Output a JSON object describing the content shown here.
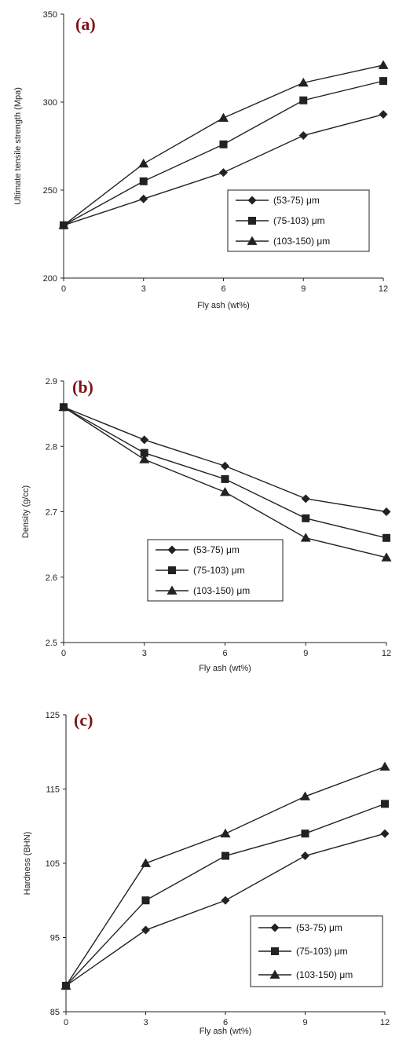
{
  "colors": {
    "line": "#222222",
    "tag": "#7a1416"
  },
  "chart_data": [
    {
      "type": "line",
      "tag": "(a)",
      "x": [
        0,
        3,
        6,
        9,
        12
      ],
      "xticks": [
        "0",
        "3",
        "6",
        "9",
        "12"
      ],
      "yticks": [
        "200",
        "250",
        "300",
        "350"
      ],
      "xlim": [
        0,
        12
      ],
      "ylim": [
        200,
        350
      ],
      "xlabel": "Fly ash (wt%)",
      "ylabel": "Ultimate tensile strength (Mpa)",
      "grid": false,
      "legend_placement": "center-right",
      "series": [
        {
          "name": "(53-75) μm",
          "marker": "diamond",
          "values": [
            230,
            245,
            260,
            281,
            293
          ]
        },
        {
          "name": "(75-103) μm",
          "marker": "square",
          "values": [
            230,
            255,
            276,
            301,
            312
          ]
        },
        {
          "name": "(103-150) μm",
          "marker": "triangle",
          "values": [
            230,
            265,
            291,
            311,
            321
          ]
        }
      ]
    },
    {
      "type": "line",
      "tag": "(b)",
      "x": [
        0,
        3,
        6,
        9,
        12
      ],
      "xticks": [
        "0",
        "3",
        "6",
        "9",
        "12"
      ],
      "yticks": [
        "2.5",
        "2.6",
        "2.7",
        "2.8",
        "2.9"
      ],
      "xlim": [
        0,
        12
      ],
      "ylim": [
        2.5,
        2.9
      ],
      "xlabel": "Fly ash (wt%)",
      "ylabel": "Density (g/cc)",
      "grid": false,
      "legend_placement": "bottom-left",
      "series": [
        {
          "name": "(53-75) μm",
          "marker": "diamond",
          "values": [
            2.86,
            2.81,
            2.77,
            2.72,
            2.7
          ]
        },
        {
          "name": "(75-103) μm",
          "marker": "square",
          "values": [
            2.86,
            2.79,
            2.75,
            2.69,
            2.66
          ]
        },
        {
          "name": "(103-150) μm",
          "marker": "triangle",
          "values": [
            2.86,
            2.78,
            2.73,
            2.66,
            2.63
          ]
        }
      ]
    },
    {
      "type": "line",
      "tag": "(c)",
      "x": [
        0,
        3,
        6,
        9,
        12
      ],
      "xticks": [
        "0",
        "3",
        "6",
        "9",
        "12"
      ],
      "yticks": [
        "85",
        "95",
        "105",
        "115",
        "125"
      ],
      "xlim": [
        0,
        12
      ],
      "ylim": [
        85,
        125
      ],
      "xlabel": "Fly ash (wt%)",
      "ylabel": "Hardness (BHN)",
      "grid": false,
      "legend_placement": "bottom-right",
      "series": [
        {
          "name": "(53-75) μm",
          "marker": "diamond",
          "values": [
            88.5,
            96,
            100,
            106,
            109
          ]
        },
        {
          "name": "(75-103) μm",
          "marker": "square",
          "values": [
            88.5,
            100,
            106,
            109,
            113
          ]
        },
        {
          "name": "(103-150) μm",
          "marker": "triangle",
          "values": [
            88.5,
            105,
            109,
            114,
            118
          ]
        }
      ]
    }
  ]
}
